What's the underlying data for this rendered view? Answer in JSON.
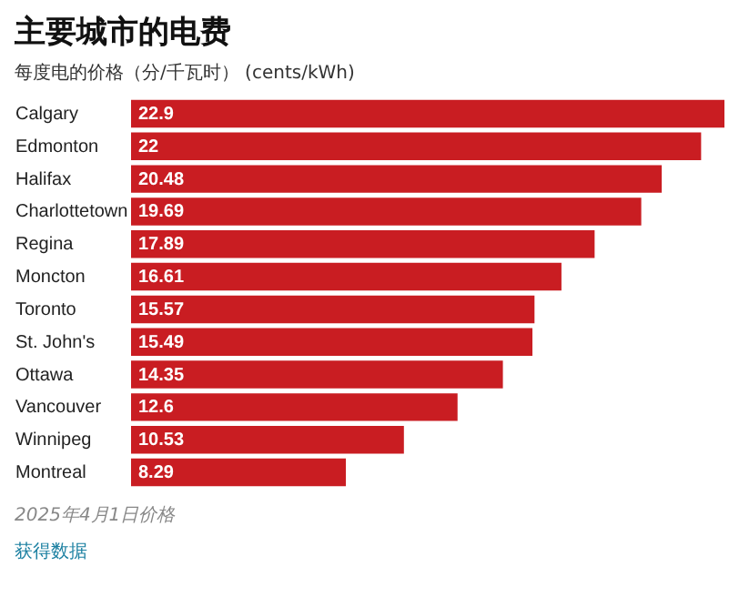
{
  "chart_data": {
    "type": "bar",
    "orientation": "horizontal",
    "data_labels": true,
    "title": "主要城市的电费",
    "subtitle": "每度电的价格（分/千瓦时） (cents/kWh)",
    "categories": [
      "Calgary",
      "Edmonton",
      "Halifax",
      "Charlottetown",
      "Regina",
      "Moncton",
      "Toronto",
      "St. John's",
      "Ottawa",
      "Vancouver",
      "Winnipeg",
      "Montreal"
    ],
    "values": [
      22.9,
      22,
      20.48,
      19.69,
      17.89,
      16.61,
      15.57,
      15.49,
      14.35,
      12.6,
      10.53,
      8.29
    ],
    "color": "#c91d22",
    "annotations": [
      "2025年4月1日价格",
      "获得数据"
    ]
  }
}
